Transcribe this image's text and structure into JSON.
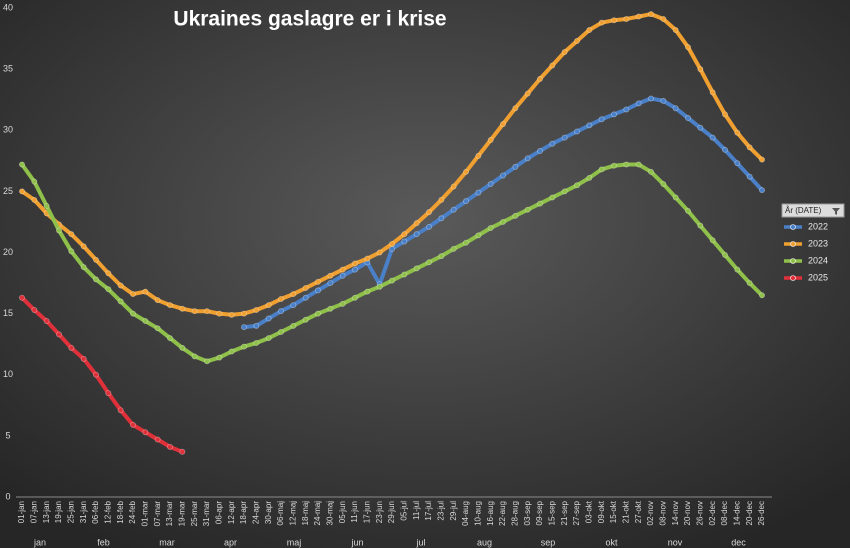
{
  "chart_data": {
    "type": "line",
    "title": "Ukraines gaslagre er i krise",
    "legend_title": "År (DATE)",
    "legend_position": "right",
    "categories": [
      "01-jan",
      "07-jan",
      "13-jan",
      "19-jan",
      "25-jan",
      "31-jan",
      "06-feb",
      "12-feb",
      "18-feb",
      "24-feb",
      "01-mar",
      "07-mar",
      "13-mar",
      "19-mar",
      "25-mar",
      "31-mar",
      "06-apr",
      "12-apr",
      "18-apr",
      "24-apr",
      "30-apr",
      "06-maj",
      "12-maj",
      "18-maj",
      "24-maj",
      "30-maj",
      "05-jun",
      "11-jun",
      "17-jun",
      "23-jun",
      "29-jun",
      "05-jul",
      "11-jul",
      "17-jul",
      "23-jul",
      "29-jul",
      "04-aug",
      "10-aug",
      "16-aug",
      "22-aug",
      "28-aug",
      "03-sep",
      "09-sep",
      "15-sep",
      "21-sep",
      "27-sep",
      "03-okt",
      "09-okt",
      "15-okt",
      "21-okt",
      "27-okt",
      "02-nov",
      "08-nov",
      "14-nov",
      "20-nov",
      "26-nov",
      "02-dec",
      "08-dec",
      "14-dec",
      "20-dec",
      "26-dec"
    ],
    "months": [
      "jan",
      "feb",
      "mar",
      "apr",
      "maj",
      "jun",
      "jul",
      "aug",
      "sep",
      "okt",
      "nov",
      "dec"
    ],
    "ylim": [
      0,
      40
    ],
    "yticks": [
      0,
      5,
      10,
      15,
      20,
      25,
      30,
      35,
      40
    ],
    "grid": false,
    "series": [
      {
        "name": "2022",
        "color": "#4a80c8",
        "values": [
          null,
          null,
          null,
          null,
          null,
          null,
          null,
          null,
          null,
          null,
          null,
          null,
          null,
          null,
          null,
          null,
          null,
          null,
          13.9,
          14.0,
          14.6,
          15.2,
          15.7,
          16.3,
          16.9,
          17.5,
          18.1,
          18.6,
          19.2,
          17.4,
          20.3,
          20.9,
          21.5,
          22.1,
          22.8,
          23.5,
          24.2,
          24.9,
          25.6,
          26.3,
          27.0,
          27.7,
          28.3,
          28.9,
          29.4,
          29.9,
          30.4,
          30.9,
          31.3,
          31.7,
          32.2,
          32.6,
          32.4,
          31.8,
          31.0,
          30.2,
          29.4,
          28.4,
          27.3,
          26.2,
          25.1
        ]
      },
      {
        "name": "2023",
        "color": "#f0a030",
        "values": [
          25.0,
          24.3,
          23.2,
          22.3,
          21.5,
          20.5,
          19.4,
          18.3,
          17.3,
          16.6,
          16.8,
          16.1,
          15.7,
          15.4,
          15.2,
          15.2,
          15.0,
          14.9,
          15.0,
          15.3,
          15.7,
          16.2,
          16.6,
          17.1,
          17.6,
          18.1,
          18.6,
          19.1,
          19.5,
          20.0,
          20.7,
          21.5,
          22.4,
          23.3,
          24.3,
          25.4,
          26.6,
          27.9,
          29.2,
          30.5,
          31.8,
          33.0,
          34.2,
          35.3,
          36.4,
          37.3,
          38.2,
          38.8,
          39.0,
          39.1,
          39.3,
          39.5,
          39.1,
          38.2,
          36.8,
          35.0,
          33.1,
          31.3,
          29.8,
          28.6,
          27.6
        ]
      },
      {
        "name": "2024",
        "color": "#8fc04a",
        "values": [
          27.2,
          25.8,
          23.8,
          21.8,
          20.1,
          18.8,
          17.8,
          17.0,
          16.0,
          15.0,
          14.4,
          13.8,
          13.0,
          12.2,
          11.5,
          11.1,
          11.4,
          11.9,
          12.3,
          12.6,
          13.0,
          13.5,
          14.0,
          14.5,
          15.0,
          15.4,
          15.8,
          16.3,
          16.8,
          17.2,
          17.7,
          18.2,
          18.7,
          19.2,
          19.7,
          20.3,
          20.8,
          21.4,
          22.0,
          22.5,
          23.0,
          23.5,
          24.0,
          24.5,
          25.0,
          25.5,
          26.1,
          26.8,
          27.1,
          27.2,
          27.2,
          26.6,
          25.6,
          24.5,
          23.4,
          22.2,
          21.0,
          19.8,
          18.6,
          17.5,
          16.5
        ]
      },
      {
        "name": "2025",
        "color": "#e0303a",
        "values": [
          16.3,
          15.3,
          14.4,
          13.3,
          12.2,
          11.3,
          10.0,
          8.5,
          7.1,
          5.9,
          5.3,
          4.7,
          4.1,
          3.7,
          null,
          null,
          null,
          null,
          null,
          null,
          null,
          null,
          null,
          null,
          null,
          null,
          null,
          null,
          null,
          null,
          null,
          null,
          null,
          null,
          null,
          null,
          null,
          null,
          null,
          null,
          null,
          null,
          null,
          null,
          null,
          null,
          null,
          null,
          null,
          null,
          null,
          null,
          null,
          null,
          null,
          null,
          null,
          null,
          null,
          null,
          null
        ]
      }
    ]
  }
}
